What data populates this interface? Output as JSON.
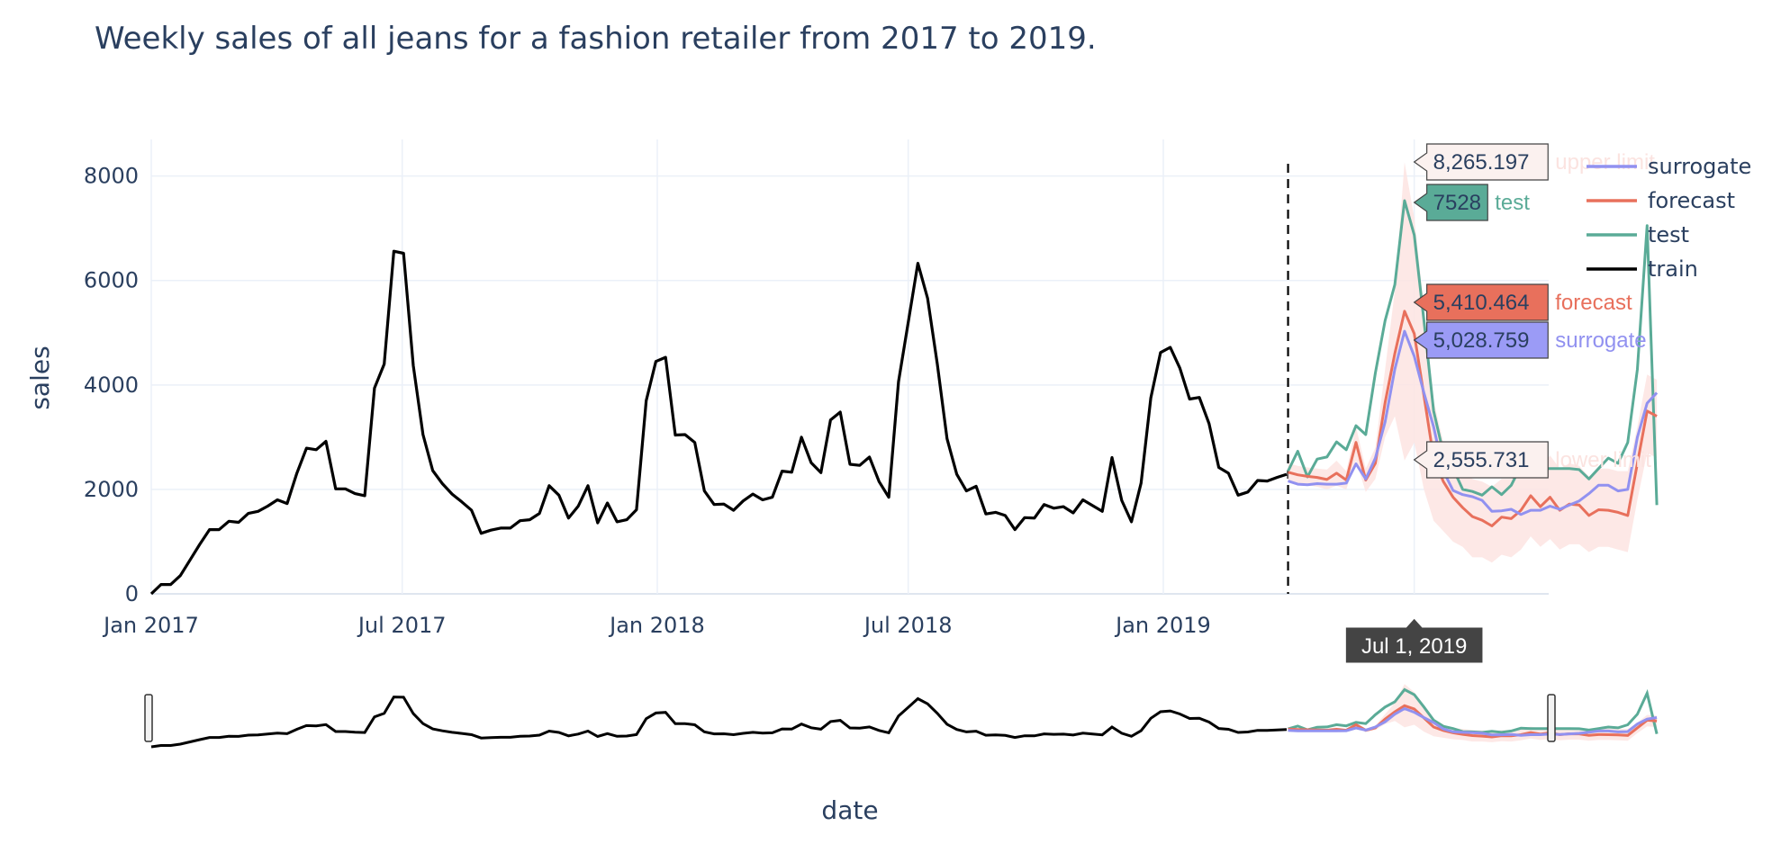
{
  "chart_data": {
    "type": "line",
    "title": "Weekly sales of all jeans for a fashion retailer from 2017 to 2019.",
    "xlabel": "date",
    "ylabel": "sales",
    "x_range": [
      "2017-01-01",
      "2019-10-06"
    ],
    "ylim": [
      0,
      8700
    ],
    "y_ticks": [
      0,
      2000,
      4000,
      6000,
      8000
    ],
    "y_tick_labels": [
      "0",
      "2000",
      "4000",
      "6000",
      "8000"
    ],
    "x_ticks": [
      "2017-01-01",
      "2017-07-01",
      "2018-01-01",
      "2018-07-01",
      "2019-01-01"
    ],
    "x_tick_labels": [
      "Jan 2017",
      "Jul 2017",
      "Jan 2018",
      "Jul 2018",
      "Jan 2019"
    ],
    "grid": true,
    "split_date": "2019-04-01",
    "legend_position": "top-right",
    "train_start": "2017-01-01",
    "future_start": "2019-04-01",
    "series": [
      {
        "name": "train",
        "color": "#000000",
        "values": [
          0,
          180,
          180,
          350,
          650,
          950,
          1230,
          1230,
          1390,
          1370,
          1540,
          1580,
          1680,
          1800,
          1730,
          2310,
          2790,
          2760,
          2920,
          2010,
          2010,
          1920,
          1880,
          3940,
          4400,
          6560,
          6520,
          4370,
          3050,
          2360,
          2110,
          1910,
          1760,
          1600,
          1160,
          1220,
          1260,
          1260,
          1400,
          1420,
          1540,
          2070,
          1890,
          1450,
          1680,
          2070,
          1360,
          1740,
          1380,
          1420,
          1610,
          3700,
          4450,
          4530,
          3040,
          3050,
          2900,
          1970,
          1710,
          1720,
          1600,
          1780,
          1910,
          1800,
          1850,
          2350,
          2330,
          3000,
          2510,
          2320,
          3330,
          3480,
          2480,
          2460,
          2620,
          2150,
          1850,
          4060,
          5200,
          6330,
          5660,
          4400,
          2970,
          2290,
          1970,
          2060,
          1530,
          1560,
          1500,
          1230,
          1460,
          1450,
          1710,
          1640,
          1670,
          1550,
          1800,
          1690,
          1580,
          2610,
          1790,
          1380,
          2120,
          3750,
          4620,
          4720,
          4320,
          3730,
          3760,
          3260,
          2420,
          2310,
          1890,
          1950,
          2170,
          2160,
          2230,
          2290
        ]
      },
      {
        "name": "test",
        "color": "#5aab97",
        "values": [
          2350,
          2730,
          2240,
          2580,
          2620,
          2910,
          2760,
          3220,
          3050,
          4230,
          5230,
          5920,
          7528,
          6870,
          5240,
          3500,
          2700,
          2400,
          2000,
          1960,
          1890,
          2050,
          1900,
          2080,
          2450,
          2400,
          2400,
          2400,
          2400,
          2400,
          2380,
          2200,
          2400,
          2600,
          2500,
          2900,
          4300,
          7050,
          1700
        ]
      },
      {
        "name": "forecast",
        "color": "#e8705c",
        "values": [
          2330,
          2280,
          2250,
          2230,
          2190,
          2310,
          2180,
          2900,
          2180,
          2500,
          3660,
          4600,
          5410.464,
          4980,
          3800,
          2600,
          2150,
          1850,
          1650,
          1480,
          1410,
          1300,
          1470,
          1440,
          1600,
          1880,
          1670,
          1850,
          1600,
          1720,
          1700,
          1500,
          1610,
          1600,
          1560,
          1500,
          2500,
          3500,
          3400
        ]
      },
      {
        "name": "surrogate",
        "color": "#9191f0",
        "values": [
          2160,
          2100,
          2090,
          2110,
          2100,
          2100,
          2120,
          2490,
          2200,
          2600,
          3290,
          4300,
          5028.759,
          4550,
          3850,
          3200,
          2350,
          1980,
          1900,
          1860,
          1790,
          1580,
          1590,
          1620,
          1520,
          1600,
          1600,
          1680,
          1620,
          1700,
          1780,
          1920,
          2080,
          2080,
          1970,
          2000,
          3000,
          3650,
          3850
        ]
      }
    ],
    "band": {
      "name_upper": "upper limit",
      "name_lower": "lower limit",
      "color": "#fde4e2",
      "upper": [
        2500,
        2450,
        2420,
        2400,
        2380,
        2550,
        2350,
        3200,
        2400,
        2800,
        4300,
        5800,
        8265.197,
        7200,
        5500,
        3700,
        2900,
        2500,
        2350,
        2200,
        2150,
        2050,
        2200,
        2200,
        2350,
        2650,
        2450,
        2650,
        2400,
        2500,
        2450,
        2250,
        2400,
        2400,
        2350,
        2350,
        3200,
        4200,
        4100
      ],
      "lower": [
        2150,
        2100,
        2080,
        2050,
        2000,
        2070,
        2000,
        2550,
        1950,
        2200,
        3000,
        3400,
        2555.731,
        2900,
        2000,
        1400,
        1200,
        1000,
        900,
        700,
        700,
        600,
        750,
        700,
        850,
        1100,
        900,
        1050,
        850,
        950,
        950,
        800,
        900,
        900,
        850,
        800,
        1800,
        2700,
        2600
      ]
    },
    "hover_labels": [
      {
        "series": "upper limit",
        "value_text": "8,265.197",
        "value": 8265.197,
        "fill": "#fbf1ef",
        "text_color": "#2a3f5f",
        "name_color": "#fbe3e0"
      },
      {
        "series": "test",
        "value_text": "7528",
        "value": 7528,
        "fill": "#5aab97",
        "text_color": "#2a3f5f",
        "name_color": "#5aab97"
      },
      {
        "series": "forecast",
        "value_text": "5,410.464",
        "value": 5410.464,
        "fill": "#e8705c",
        "text_color": "#2a3f5f",
        "name_color": "#e8705c"
      },
      {
        "series": "surrogate",
        "value_text": "5,028.759",
        "value": 5028.759,
        "fill": "#9b9bf6",
        "text_color": "#2a3f5f",
        "name_color": "#9191f0"
      },
      {
        "series": "lower limit",
        "value_text": "2,555.731",
        "value": 2555.731,
        "fill": "#fbf1ef",
        "text_color": "#2a3f5f",
        "name_color": "#fbe3e0"
      }
    ],
    "hover_date": "2019-07-01",
    "x_hover_label": "Jul 1, 2019",
    "legend": [
      "surrogate",
      "forecast",
      "test",
      "train"
    ]
  }
}
